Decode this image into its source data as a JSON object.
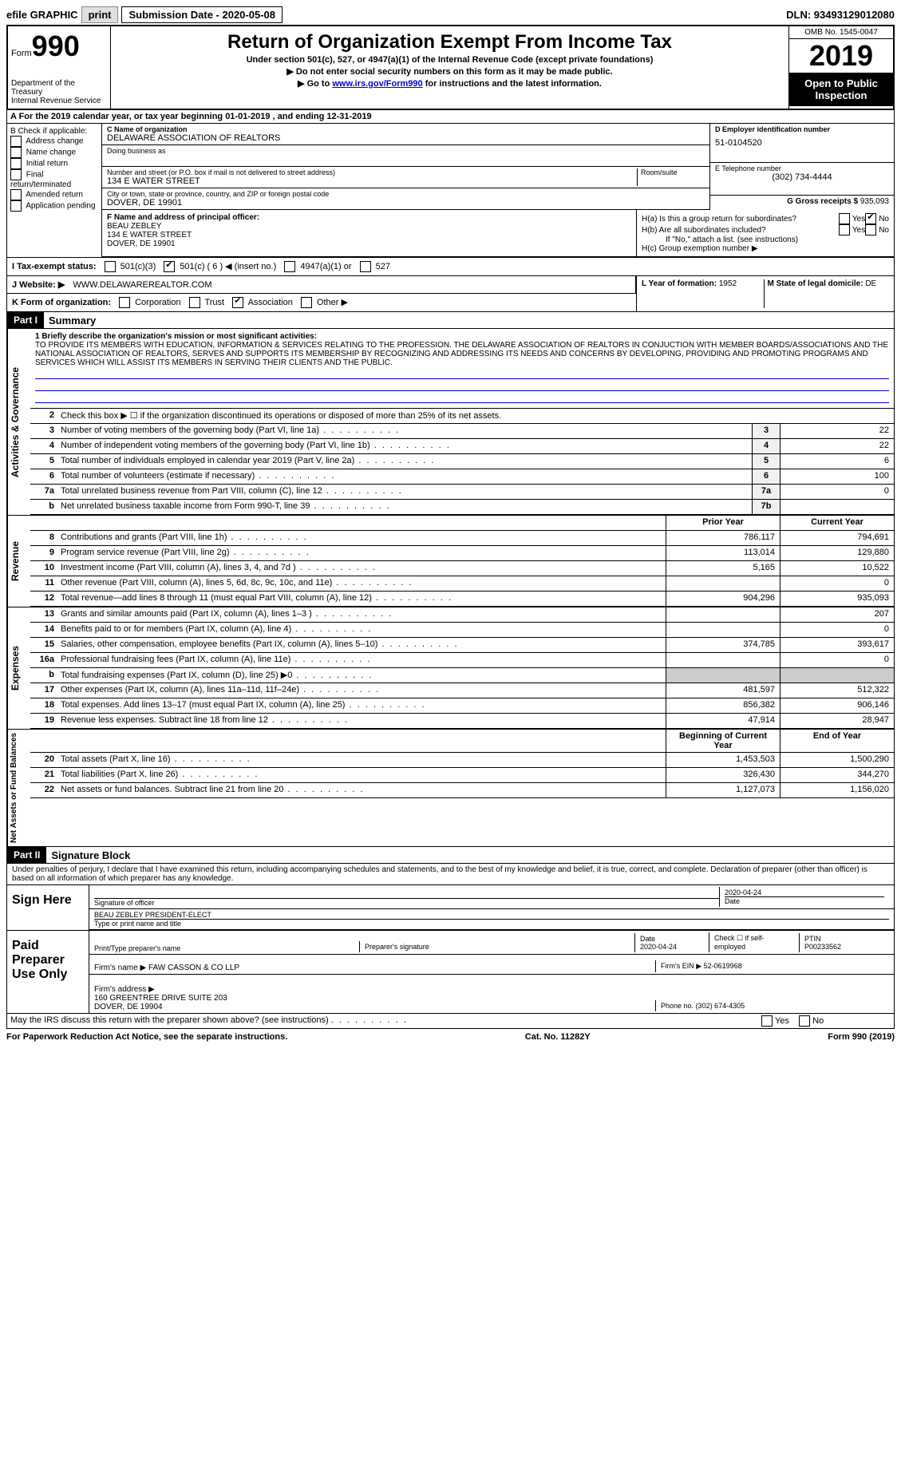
{
  "topbar": {
    "efile": "efile GRAPHIC",
    "print": "print",
    "submission": "Submission Date - 2020-05-08",
    "dln": "DLN: 93493129012080"
  },
  "header": {
    "form_prefix": "Form",
    "form_number": "990",
    "dept": "Department of the Treasury\nInternal Revenue Service",
    "title": "Return of Organization Exempt From Income Tax",
    "subtitle": "Under section 501(c), 527, or 4947(a)(1) of the Internal Revenue Code (except private foundations)",
    "warn1": "▶ Do not enter social security numbers on this form as it may be made public.",
    "warn2_pre": "▶ Go to ",
    "warn2_link": "www.irs.gov/Form990",
    "warn2_post": " for instructions and the latest information.",
    "omb": "OMB No. 1545-0047",
    "year": "2019",
    "otp": "Open to Public Inspection"
  },
  "lineA": "A For the 2019 calendar year, or tax year beginning 01-01-2019   , and ending 12-31-2019",
  "boxB": {
    "label": "B Check if applicable:",
    "items": [
      "Address change",
      "Name change",
      "Initial return",
      "Final return/terminated",
      "Amended return",
      "Application pending"
    ]
  },
  "boxC": {
    "name_label": "C Name of organization",
    "name": "DELAWARE ASSOCIATION OF REALTORS",
    "dba_label": "Doing business as",
    "street_label": "Number and street (or P.O. box if mail is not delivered to street address)",
    "room_label": "Room/suite",
    "street": "134 E WATER STREET",
    "city_label": "City or town, state or province, country, and ZIP or foreign postal code",
    "city": "DOVER, DE  19901"
  },
  "boxD": {
    "label": "D Employer identification number",
    "value": "51-0104520"
  },
  "boxE": {
    "label": "E Telephone number",
    "value": "(302) 734-4444"
  },
  "boxG": {
    "label": "G Gross receipts $",
    "value": "935,093"
  },
  "boxF": {
    "label": "F Name and address of principal officer:",
    "name": "BEAU ZEBLEY",
    "street": "134 E WATER STREET",
    "city": "DOVER, DE  19901"
  },
  "boxH": {
    "ha": "H(a)  Is this a group return for subordinates?",
    "hb": "H(b)  Are all subordinates included?",
    "hb_note": "If \"No,\" attach a list. (see instructions)",
    "hc": "H(c)  Group exemption number ▶",
    "yes": "Yes",
    "no": "No"
  },
  "boxI": {
    "label": "I   Tax-exempt status:",
    "opts": [
      "501(c)(3)",
      "501(c) ( 6 ) ◀ (insert no.)",
      "4947(a)(1) or",
      "527"
    ]
  },
  "boxJ": {
    "label": "J   Website: ▶",
    "value": "WWW.DELAWAREREALTOR.COM"
  },
  "boxK": {
    "label": "K Form of organization:",
    "opts": [
      "Corporation",
      "Trust",
      "Association",
      "Other ▶"
    ]
  },
  "boxL": {
    "label": "L Year of formation:",
    "value": "1952"
  },
  "boxM": {
    "label": "M State of legal domicile:",
    "value": "DE"
  },
  "part1": {
    "header": "Part I",
    "title": "Summary",
    "line1_label": "1  Briefly describe the organization's mission or most significant activities:",
    "mission": "TO PROVIDE ITS MEMBERS WITH EDUCATION, INFORMATION & SERVICES RELATING TO THE PROFESSION. THE DELAWARE ASSOCIATION OF REALTORS IN CONJUCTION WITH MEMBER BOARDS/ASSOCIATIONS AND THE NATIONAL ASSOCIATION OF REALTORS, SERVES AND SUPPORTS ITS MEMBERSHIP BY RECOGNIZING AND ADDRESSING ITS NEEDS AND CONCERNS BY DEVELOPING, PROVIDING AND PROMOTING PROGRAMS AND SERVICES WHICH WILL ASSIST ITS MEMBERS IN SERVING THEIR CLIENTS AND THE PUBLIC.",
    "line2": "Check this box ▶ ☐ if the organization discontinued its operations or disposed of more than 25% of its net assets.",
    "side_gov": "Activities & Governance",
    "side_rev": "Revenue",
    "side_exp": "Expenses",
    "side_net": "Net Assets or Fund Balances",
    "col_prior": "Prior Year",
    "col_current": "Current Year",
    "col_boy": "Beginning of Current Year",
    "col_eoy": "End of Year"
  },
  "gov_lines": [
    {
      "num": "3",
      "desc": "Number of voting members of the governing body (Part VI, line 1a)",
      "box": "3",
      "val": "22"
    },
    {
      "num": "4",
      "desc": "Number of independent voting members of the governing body (Part VI, line 1b)",
      "box": "4",
      "val": "22"
    },
    {
      "num": "5",
      "desc": "Total number of individuals employed in calendar year 2019 (Part V, line 2a)",
      "box": "5",
      "val": "6"
    },
    {
      "num": "6",
      "desc": "Total number of volunteers (estimate if necessary)",
      "box": "6",
      "val": "100"
    },
    {
      "num": "7a",
      "desc": "Total unrelated business revenue from Part VIII, column (C), line 12",
      "box": "7a",
      "val": "0"
    },
    {
      "num": "b",
      "desc": "Net unrelated business taxable income from Form 990-T, line 39",
      "box": "7b",
      "val": ""
    }
  ],
  "rev_lines": [
    {
      "num": "8",
      "desc": "Contributions and grants (Part VIII, line 1h)",
      "prior": "786,117",
      "curr": "794,691"
    },
    {
      "num": "9",
      "desc": "Program service revenue (Part VIII, line 2g)",
      "prior": "113,014",
      "curr": "129,880"
    },
    {
      "num": "10",
      "desc": "Investment income (Part VIII, column (A), lines 3, 4, and 7d )",
      "prior": "5,165",
      "curr": "10,522"
    },
    {
      "num": "11",
      "desc": "Other revenue (Part VIII, column (A), lines 5, 6d, 8c, 9c, 10c, and 11e)",
      "prior": "",
      "curr": "0"
    },
    {
      "num": "12",
      "desc": "Total revenue—add lines 8 through 11 (must equal Part VIII, column (A), line 12)",
      "prior": "904,296",
      "curr": "935,093"
    }
  ],
  "exp_lines": [
    {
      "num": "13",
      "desc": "Grants and similar amounts paid (Part IX, column (A), lines 1–3 )",
      "prior": "",
      "curr": "207"
    },
    {
      "num": "14",
      "desc": "Benefits paid to or for members (Part IX, column (A), line 4)",
      "prior": "",
      "curr": "0"
    },
    {
      "num": "15",
      "desc": "Salaries, other compensation, employee benefits (Part IX, column (A), lines 5–10)",
      "prior": "374,785",
      "curr": "393,617"
    },
    {
      "num": "16a",
      "desc": "Professional fundraising fees (Part IX, column (A), line 11e)",
      "prior": "",
      "curr": "0"
    },
    {
      "num": "b",
      "desc": "Total fundraising expenses (Part IX, column (D), line 25) ▶0",
      "prior": "",
      "curr": "",
      "shade": true
    },
    {
      "num": "17",
      "desc": "Other expenses (Part IX, column (A), lines 11a–11d, 11f–24e)",
      "prior": "481,597",
      "curr": "512,322"
    },
    {
      "num": "18",
      "desc": "Total expenses. Add lines 13–17 (must equal Part IX, column (A), line 25)",
      "prior": "856,382",
      "curr": "906,146"
    },
    {
      "num": "19",
      "desc": "Revenue less expenses. Subtract line 18 from line 12",
      "prior": "47,914",
      "curr": "28,947"
    }
  ],
  "net_lines": [
    {
      "num": "20",
      "desc": "Total assets (Part X, line 16)",
      "prior": "1,453,503",
      "curr": "1,500,290"
    },
    {
      "num": "21",
      "desc": "Total liabilities (Part X, line 26)",
      "prior": "326,430",
      "curr": "344,270"
    },
    {
      "num": "22",
      "desc": "Net assets or fund balances. Subtract line 21 from line 20",
      "prior": "1,127,073",
      "curr": "1,156,020"
    }
  ],
  "part2": {
    "header": "Part II",
    "title": "Signature Block",
    "declaration": "Under penalties of perjury, I declare that I have examined this return, including accompanying schedules and statements, and to the best of my knowledge and belief, it is true, correct, and complete. Declaration of preparer (other than officer) is based on all information of which preparer has any knowledge.",
    "sign_here": "Sign Here",
    "sig_officer": "Signature of officer",
    "sig_date": "2020-04-24",
    "date_label": "Date",
    "officer_name": "BEAU ZEBLEY PRESIDENT-ELECT",
    "type_name": "Type or print name and title",
    "paid_prep": "Paid Preparer Use Only",
    "prep_name_label": "Print/Type preparer's name",
    "prep_sig_label": "Preparer's signature",
    "prep_date_label": "Date",
    "prep_date": "2020-04-24",
    "self_emp": "Check ☐ if self-employed",
    "ptin_label": "PTIN",
    "ptin": "P00233562",
    "firm_name_label": "Firm's name   ▶",
    "firm_name": "FAW CASSON & CO LLP",
    "firm_ein_label": "Firm's EIN ▶",
    "firm_ein": "52-0619968",
    "firm_addr_label": "Firm's address ▶",
    "firm_addr": "160 GREENTREE DRIVE SUITE 203\nDOVER, DE  19904",
    "phone_label": "Phone no.",
    "phone": "(302) 674-4305",
    "may_irs": "May the IRS discuss this return with the preparer shown above? (see instructions)",
    "yes": "Yes",
    "no": "No"
  },
  "footer": {
    "pra": "For Paperwork Reduction Act Notice, see the separate instructions.",
    "cat": "Cat. No. 11282Y",
    "form": "Form 990 (2019)"
  }
}
